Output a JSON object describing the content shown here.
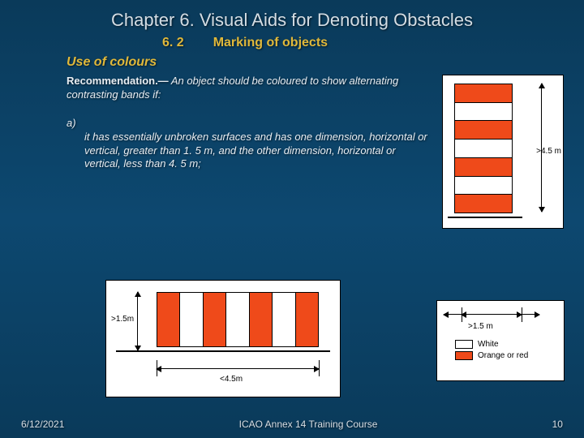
{
  "header": {
    "chapter_title": "Chapter 6.  Visual Aids for Denoting Obstacles",
    "section_number": "6. 2",
    "section_name": "Marking of objects"
  },
  "section_heading": "Use of colours",
  "recommendation": {
    "lead": "Recommendation.—",
    "body": " An object should be coloured to show alternating contrasting bands if:"
  },
  "clause_a": {
    "lead": "a) ",
    "body": "it has essentially unbroken surfaces and has one dimension, horizontal or vertical, greater than 1. 5 m, and the other dimension, horizontal or vertical, less than 4. 5 m;"
  },
  "figure_vertical": {
    "bands": [
      "orange",
      "white",
      "orange",
      "white",
      "orange",
      "white",
      "orange"
    ],
    "band_color_orange": "#ef4a1a",
    "band_color_white": "#ffffff",
    "height_label": ">4.5 m",
    "width_label": ">1.5 m"
  },
  "figure_horizontal": {
    "bands": [
      "orange",
      "white",
      "orange",
      "white",
      "orange",
      "white",
      "orange"
    ],
    "band_color_orange": "#ef4a1a",
    "band_color_white": "#ffffff",
    "height_label": ">1.5m",
    "width_label": "<4.5m"
  },
  "legend": {
    "white_label": "White",
    "orange_label": "Orange or red"
  },
  "footer": {
    "date": "6/12/2021",
    "course": "ICAO Annex 14 Training Course",
    "page": "10"
  },
  "colors": {
    "slide_bg_top": "#0a3a5a",
    "slide_bg_mid": "#0d4870",
    "accent_gold": "#e0b83a",
    "text_light": "#e8edf2",
    "stripe_orange": "#ef4a1a"
  }
}
